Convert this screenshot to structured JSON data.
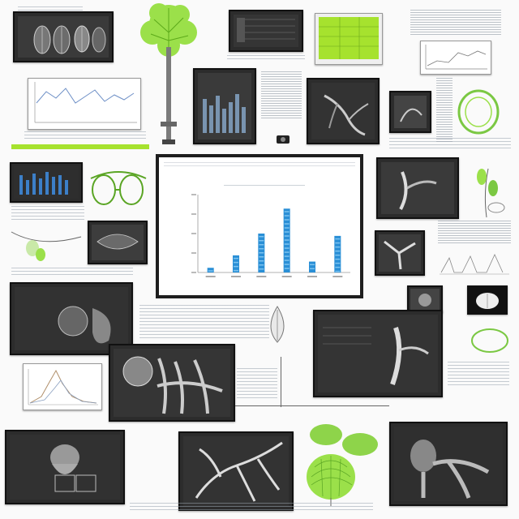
{
  "colors": {
    "panel_bg": "#2c2c2c",
    "leaf_green": "#a6e22e",
    "bar_blue": "#2a8fd6",
    "line_blue": "#6d8fc6",
    "page_bg": "#fafafa"
  },
  "icons": [
    "tree-illustration",
    "leaf-cluster",
    "vascular-scan",
    "seed-pods",
    "bar-chart",
    "line-chart"
  ],
  "chart_data": {
    "type": "bar",
    "categories": [
      "",
      "",
      "",
      "",
      "",
      ""
    ],
    "values": [
      6,
      22,
      50,
      82,
      14,
      47
    ],
    "ylim": [
      0,
      100
    ],
    "grid": false
  }
}
